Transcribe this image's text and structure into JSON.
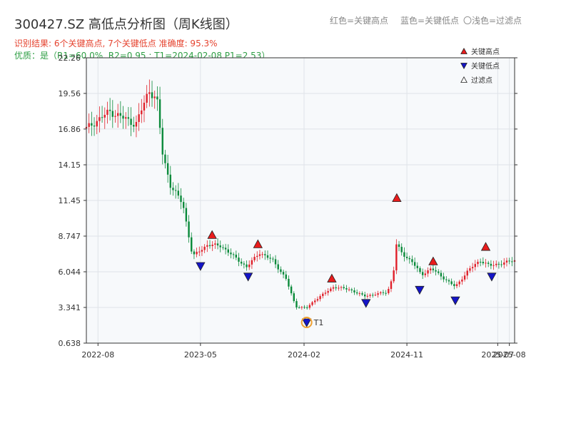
{
  "header": {
    "title": "300427.SZ 高低点分析图（周K线图）",
    "hint_red": "红色=关键高点",
    "hint_blue": "蓝色=关键低点",
    "hint_light": "〇浅色=过滤点",
    "result": "识别结果: 6个关键高点, 7个关键低点  准确度: 95.3%",
    "quality": "优质：是（R1=60.0%, R2=0.95 ; T1=2024-02-08 P1=2.53）"
  },
  "colors": {
    "up": "#e0202a",
    "down": "#0a8a3a",
    "high_marker": "#e81c1c",
    "low_marker": "#1414c8",
    "t1": "#f0a030",
    "plot_bg": "#f7f9fb"
  },
  "chart_data": {
    "type": "candlestick",
    "period": "weekly",
    "ylim": [
      0.638,
      22.26
    ],
    "yticks": [
      "22.26",
      "19.56",
      "16.86",
      "14.15",
      "11.45",
      "8.747",
      "6.044",
      "3.341",
      "0.638"
    ],
    "xlim": [
      "2022-07-01",
      "2025-08-15"
    ],
    "xticks": [
      "2022-08",
      "2023-05",
      "2024-02",
      "2024-11",
      "2025-07",
      "2025-08"
    ],
    "legend": {
      "position": "top-right",
      "entries": [
        {
          "label": "关键高点",
          "kind": "high"
        },
        {
          "label": "关键低点",
          "kind": "low"
        },
        {
          "label": "过滤点",
          "kind": "filtered"
        }
      ]
    },
    "anchors": [
      [
        "2022-07-01",
        16.9
      ],
      [
        "2022-09-01",
        18.2
      ],
      [
        "2022-10-15",
        17.6
      ],
      [
        "2022-11-10",
        17.2
      ],
      [
        "2022-12-15",
        19.8
      ],
      [
        "2023-01-05",
        19.1
      ],
      [
        "2023-01-20",
        15.0
      ],
      [
        "2023-02-10",
        12.6
      ],
      [
        "2023-03-15",
        11.2
      ],
      [
        "2023-04-10",
        7.2
      ],
      [
        "2023-05-20",
        8.1
      ],
      [
        "2023-06-25",
        8.0
      ],
      [
        "2023-08-15",
        6.8
      ],
      [
        "2023-09-01",
        6.4
      ],
      [
        "2023-10-05",
        7.5
      ],
      [
        "2023-11-10",
        6.9
      ],
      [
        "2023-12-15",
        5.5
      ],
      [
        "2024-01-10",
        3.4
      ],
      [
        "2024-02-08",
        3.3
      ],
      [
        "2024-03-01",
        3.9
      ],
      [
        "2024-04-20",
        4.9
      ],
      [
        "2024-06-01",
        4.7
      ],
      [
        "2024-07-10",
        4.2
      ],
      [
        "2024-09-10",
        4.5
      ],
      [
        "2024-09-26",
        5.8
      ],
      [
        "2024-10-02",
        8.2
      ],
      [
        "2024-10-20",
        7.4
      ],
      [
        "2024-11-15",
        6.8
      ],
      [
        "2024-12-10",
        5.8
      ],
      [
        "2025-01-05",
        6.3
      ],
      [
        "2025-02-10",
        5.5
      ],
      [
        "2025-03-10",
        4.9
      ],
      [
        "2025-04-15",
        6.2
      ],
      [
        "2025-05-15",
        6.9
      ],
      [
        "2025-06-10",
        6.5
      ],
      [
        "2025-08-15",
        6.9
      ]
    ],
    "key_highs": [
      {
        "date": "2023-06-01",
        "price": 8.4
      },
      {
        "date": "2023-10-01",
        "price": 7.7
      },
      {
        "date": "2024-04-15",
        "price": 5.1
      },
      {
        "date": "2024-10-05",
        "price": 11.2
      },
      {
        "date": "2025-01-10",
        "price": 6.4
      },
      {
        "date": "2025-05-30",
        "price": 7.5
      }
    ],
    "key_lows": [
      {
        "date": "2023-05-01",
        "price": 6.8
      },
      {
        "date": "2023-09-05",
        "price": 6.0
      },
      {
        "date": "2024-02-08",
        "price": 2.53
      },
      {
        "date": "2024-07-15",
        "price": 4.0
      },
      {
        "date": "2024-12-05",
        "price": 5.0
      },
      {
        "date": "2025-03-10",
        "price": 4.2
      },
      {
        "date": "2025-06-15",
        "price": 6.0
      }
    ],
    "annotation": {
      "label": "T1",
      "date": "2024-02-08",
      "price": 2.53
    }
  }
}
